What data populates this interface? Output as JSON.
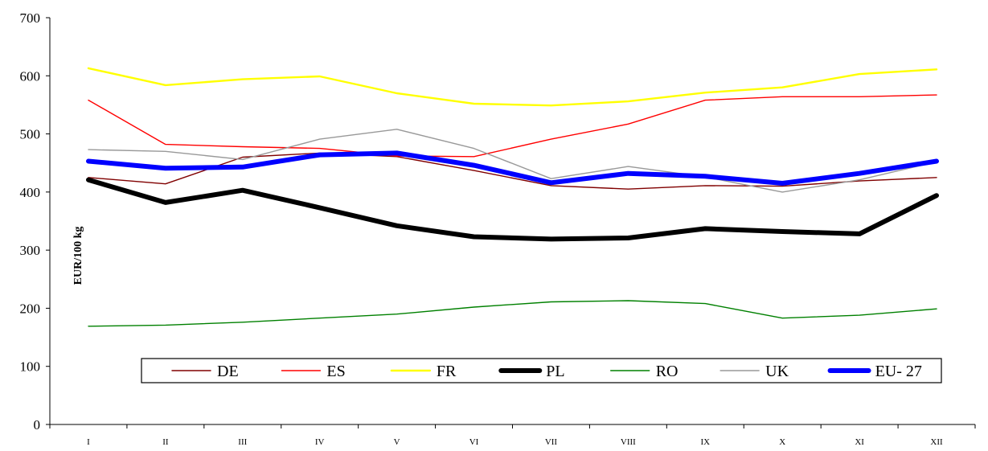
{
  "chart_data": {
    "type": "line",
    "title": "",
    "xlabel": "",
    "ylabel": "EUR/100 kg",
    "ylim": [
      0,
      700
    ],
    "yticks": [
      0,
      100,
      200,
      300,
      400,
      500,
      600,
      700
    ],
    "grid": false,
    "legend": "bottom-inside",
    "categories": [
      "I",
      "II",
      "III",
      "IV",
      "V",
      "VI",
      "VII",
      "VIII",
      "IX",
      "X",
      "XI",
      "XII"
    ],
    "series": [
      {
        "name": "DE",
        "color": "#800000",
        "width": 1.4,
        "values": [
          425,
          414,
          460,
          467,
          461,
          437,
          411,
          405,
          411,
          410,
          419,
          425
        ]
      },
      {
        "name": "ES",
        "color": "#ff0000",
        "width": 1.4,
        "values": [
          558,
          482,
          478,
          475,
          462,
          461,
          491,
          517,
          558,
          564,
          564,
          567
        ]
      },
      {
        "name": "FR",
        "color": "#ffff00",
        "width": 2.4,
        "values": [
          613,
          584,
          594,
          599,
          570,
          552,
          549,
          556,
          571,
          580,
          603,
          611
        ]
      },
      {
        "name": "PL",
        "color": "#000000",
        "width": 6,
        "values": [
          421,
          382,
          403,
          373,
          342,
          323,
          319,
          321,
          337,
          332,
          328,
          394
        ]
      },
      {
        "name": "RO",
        "color": "#008000",
        "width": 1.4,
        "values": [
          169,
          171,
          176,
          183,
          190,
          202,
          211,
          213,
          208,
          183,
          188,
          199
        ]
      },
      {
        "name": "UK",
        "color": "#999999",
        "width": 1.4,
        "values": [
          473,
          470,
          456,
          491,
          508,
          475,
          423,
          444,
          426,
          400,
          421,
          452
        ]
      },
      {
        "name": "EU- 27",
        "color": "#0000ff",
        "width": 6,
        "values": [
          453,
          441,
          443,
          464,
          467,
          446,
          416,
          432,
          427,
          415,
          432,
          453
        ]
      }
    ]
  }
}
